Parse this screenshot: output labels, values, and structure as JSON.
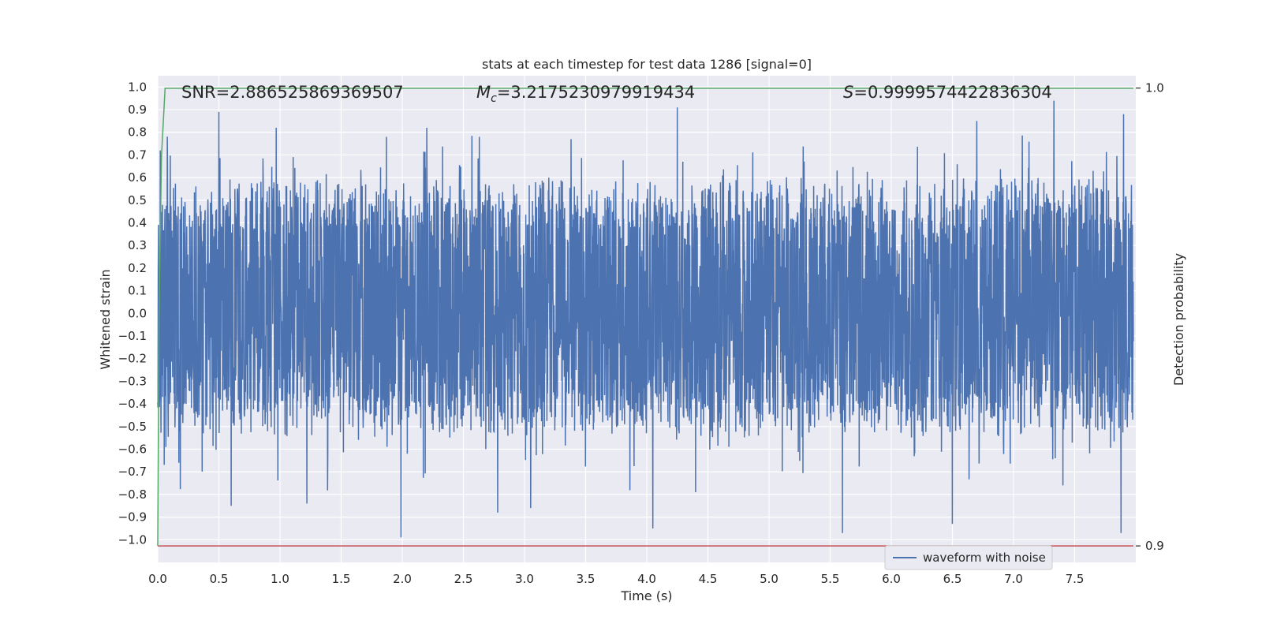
{
  "chart_data": {
    "type": "line",
    "title": "stats at each timestep for test data 1286 [signal=0]",
    "xlabel": "Time (s)",
    "ylabel": "Whitened strain",
    "y2label": "Detection probability",
    "xlim": [
      0.0,
      8.0
    ],
    "ylim": [
      -1.1,
      1.05
    ],
    "y2lim": [
      0.8964,
      1.0027
    ],
    "x_ticks": [
      "0.0",
      "0.5",
      "1.0",
      "1.5",
      "2.0",
      "2.5",
      "3.0",
      "3.5",
      "4.0",
      "4.5",
      "5.0",
      "5.5",
      "6.0",
      "6.5",
      "7.0",
      "7.5"
    ],
    "y_ticks": [
      "1.0",
      "0.9",
      "0.8",
      "0.7",
      "0.6",
      "0.5",
      "0.4",
      "0.3",
      "0.2",
      "0.1",
      "0.0",
      "−0.1",
      "−0.2",
      "−0.3",
      "−0.4",
      "−0.5",
      "−0.6",
      "−0.7",
      "−0.8",
      "−0.9",
      "−1.0"
    ],
    "y2_ticks": [
      "1.0",
      "0.9"
    ],
    "grid": true,
    "legend": {
      "placement": "lower-right",
      "entries": [
        "waveform with noise"
      ]
    },
    "annotations": {
      "snr": "SNR=2.886525869369507",
      "mc_symbol": "M",
      "mc_sub": "c",
      "mc_value": "=3.2175230979919434",
      "s_symbol": "S",
      "s_value": "=0.9999574422836304"
    },
    "series": [
      {
        "name": "waveform with noise",
        "color": "#4c72b0",
        "noise_band": [
          -0.45,
          0.5
        ],
        "peaks": [
          [
            0.02,
            0.72
          ],
          [
            0.08,
            0.65
          ],
          [
            0.5,
            0.89
          ],
          [
            0.6,
            -0.85
          ],
          [
            0.97,
            0.82
          ],
          [
            1.22,
            -0.84
          ],
          [
            1.87,
            0.78
          ],
          [
            1.99,
            -0.99
          ],
          [
            2.2,
            0.82
          ],
          [
            2.63,
            0.78
          ],
          [
            2.78,
            -0.88
          ],
          [
            3.05,
            -0.86
          ],
          [
            3.38,
            0.77
          ],
          [
            4.05,
            -0.95
          ],
          [
            4.25,
            0.91
          ],
          [
            4.4,
            -0.79
          ],
          [
            5.6,
            -0.97
          ],
          [
            6.5,
            -0.93
          ],
          [
            6.7,
            0.85
          ],
          [
            7.33,
            0.94
          ],
          [
            7.9,
            0.88
          ],
          [
            7.88,
            -0.97
          ]
        ]
      },
      {
        "name": "detection probability",
        "color": "#55a868",
        "axis": "right",
        "x": [
          0.0,
          0.01,
          0.03,
          0.06,
          7.98
        ],
        "y": [
          0.9,
          0.95,
          0.985,
          0.999957,
          0.999957
        ]
      },
      {
        "name": "threshold",
        "color": "#c44e52",
        "axis": "right",
        "x": [
          0.0,
          7.98
        ],
        "y": [
          0.9,
          0.9
        ]
      }
    ]
  }
}
